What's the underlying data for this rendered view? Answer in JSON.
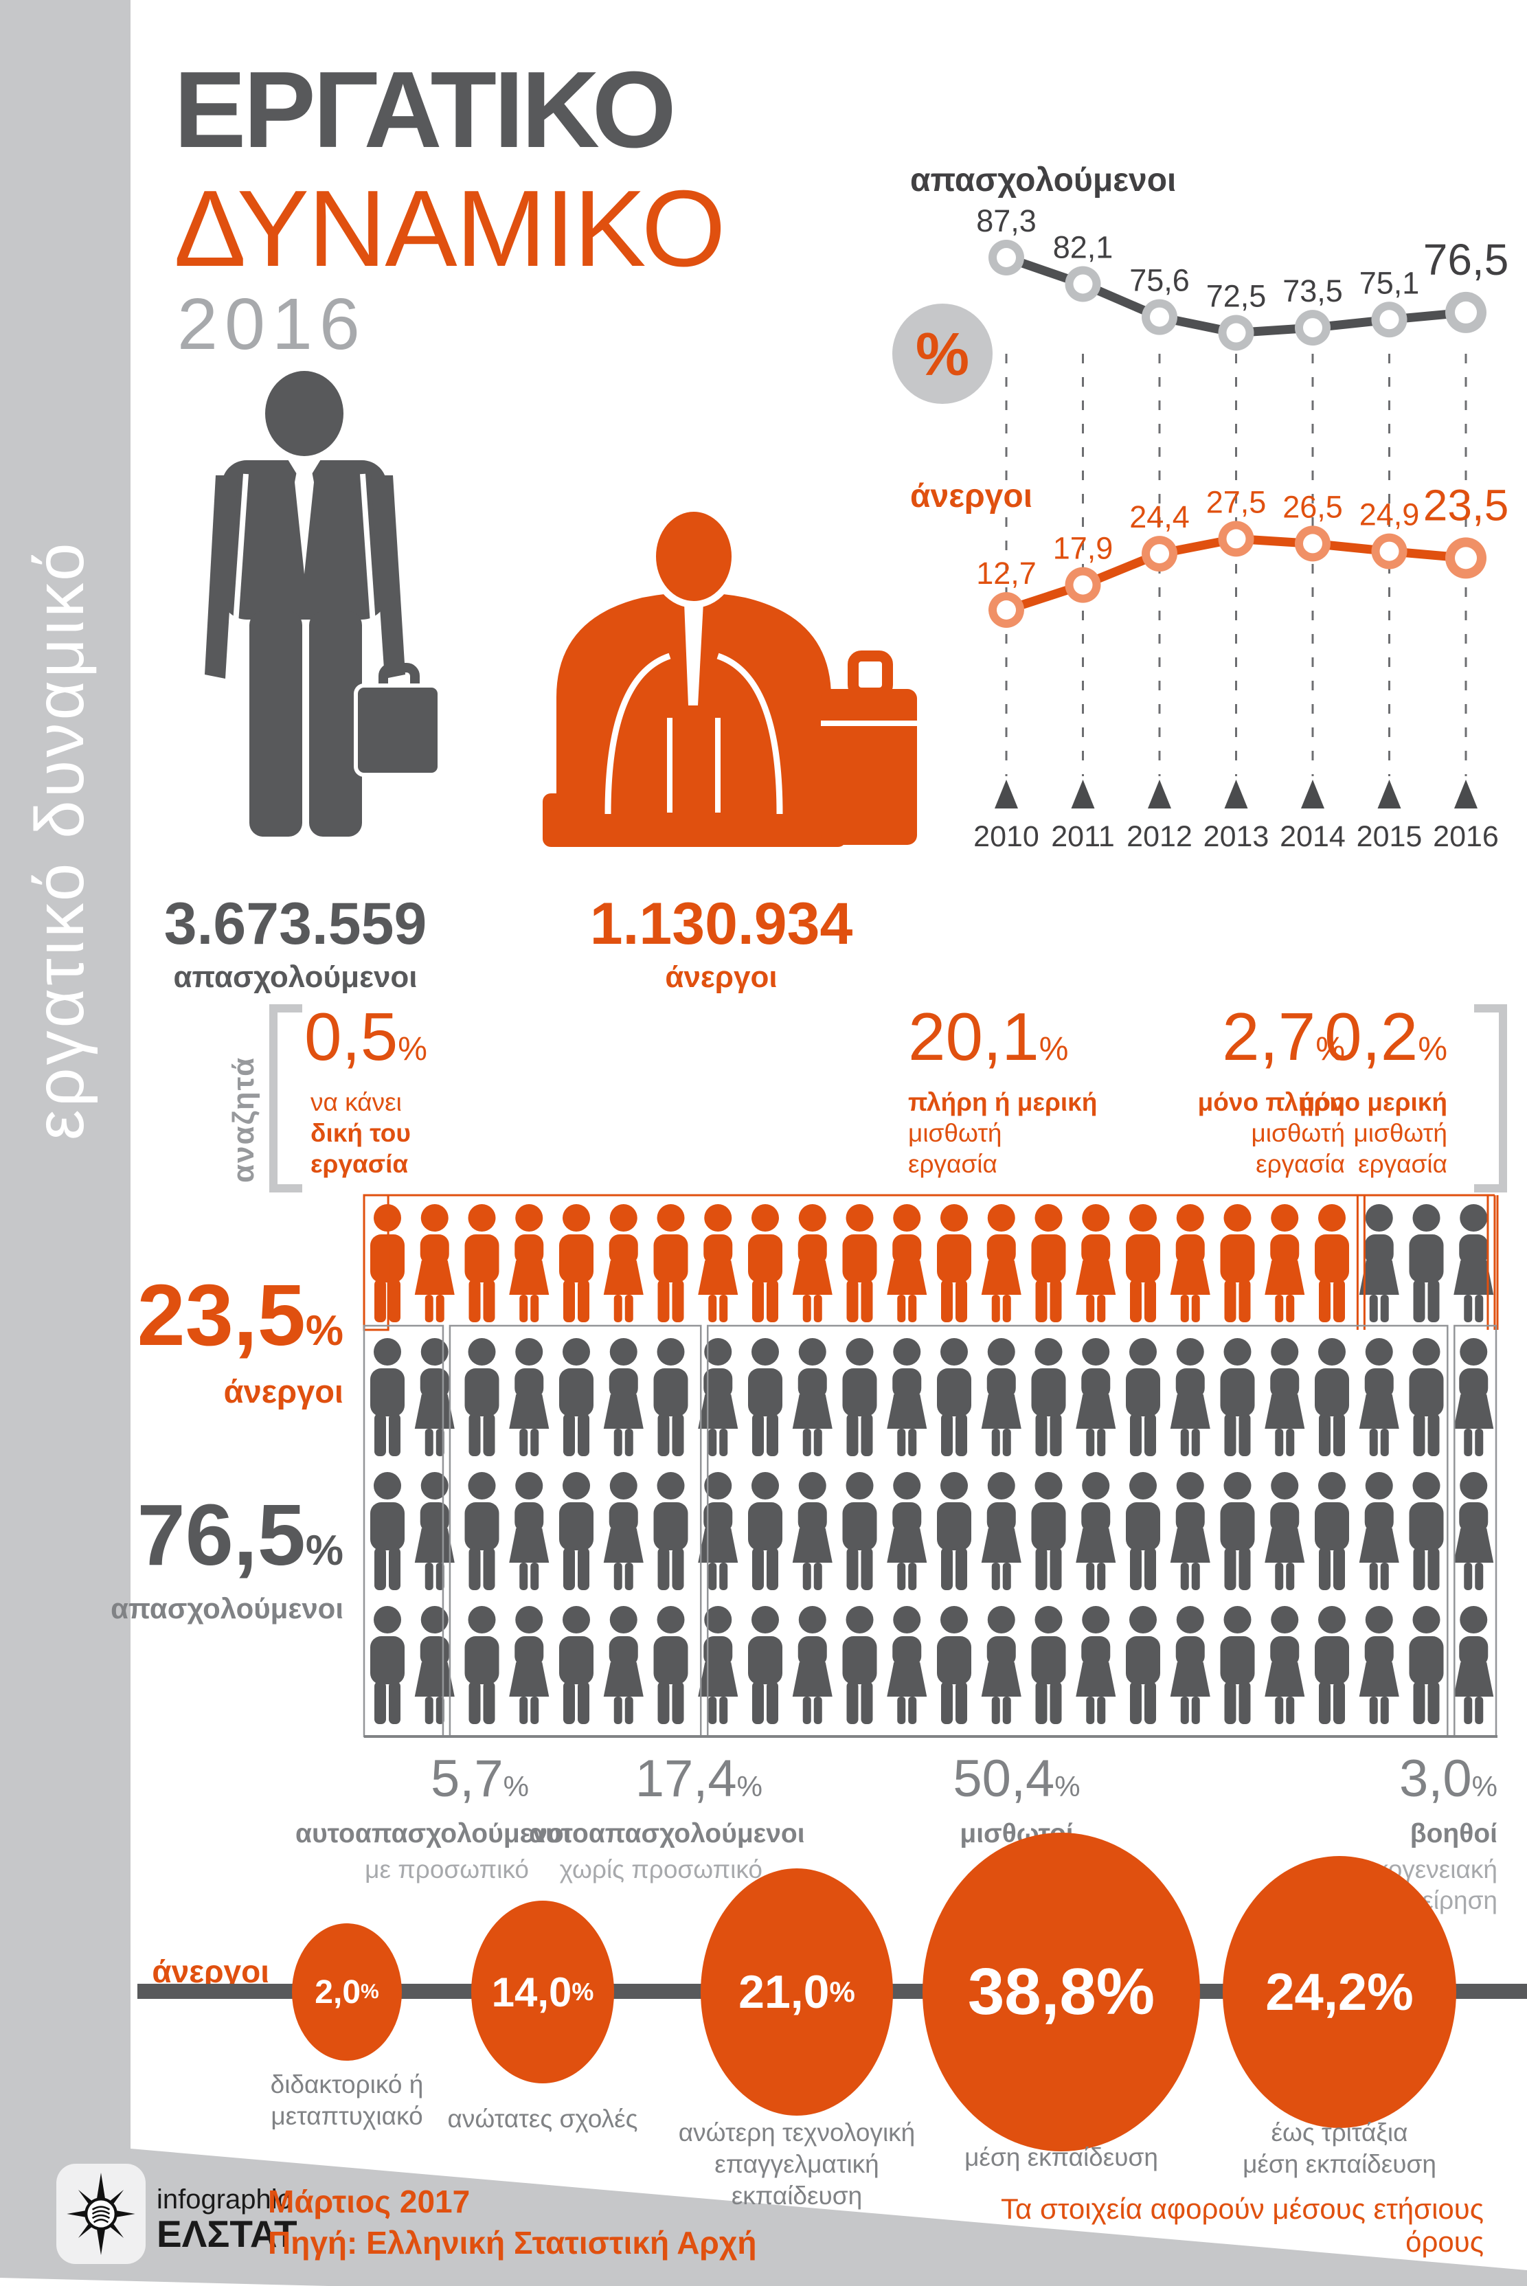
{
  "page": {
    "sidebar_text": "εργατικό δυναμικό",
    "title_line1": "ΕΡΓΑΤΙΚΟ",
    "title_line2": "ΔΥΝΑΜΙΚΟ",
    "title_year": "2016"
  },
  "chart_data": {
    "type": "line",
    "x": [
      "2010",
      "2011",
      "2012",
      "2013",
      "2014",
      "2015",
      "2016"
    ],
    "unit_badge": "%",
    "grid": "dashed-vertical-per-year",
    "legend_position": "left-of-lines",
    "series": [
      {
        "name": "απασχολούμενοι",
        "values": [
          87.3,
          82.1,
          75.6,
          72.5,
          73.5,
          75.1,
          76.5
        ],
        "labels": [
          "87,3",
          "82,1",
          "75,6",
          "72,5",
          "73,5",
          "75,1",
          "76,5"
        ],
        "color": "#4f5052",
        "marker_rim": "#bdbfc1",
        "label_color": "#414042"
      },
      {
        "name": "άνεργοι",
        "values": [
          12.7,
          17.9,
          24.4,
          27.5,
          26.5,
          24.9,
          23.5
        ],
        "labels": [
          "12,7",
          "17,9",
          "24,4",
          "27,5",
          "26,5",
          "24,9",
          "23,5"
        ],
        "color": "#e0500f",
        "marker_rim": "#f09066",
        "label_color": "#e0500f"
      }
    ]
  },
  "totals": {
    "employed_number": "3.673.559",
    "employed_label": "απασχολούμενοι",
    "unemployed_number": "1.130.934",
    "unemployed_label": "άνεργοι"
  },
  "seeking": {
    "side_label": "αναζητά",
    "items": [
      {
        "value": "0,5",
        "unit": "%",
        "line1": "να κάνει",
        "line2": "δική του",
        "line3": "εργασία",
        "percent": 0.5
      },
      {
        "value": "20,1",
        "unit": "%",
        "line1": "πλήρη ή μερική",
        "line2": "μισθωτή",
        "line3": "εργασία",
        "percent": 20.1
      },
      {
        "value": "2,7",
        "unit": "%",
        "line1": "μόνο πλήρη",
        "line2": "μισθωτή",
        "line3": "εργασία",
        "percent": 2.7
      },
      {
        "value": "0,2",
        "unit": "%",
        "line1": "μόνο μερική",
        "line2": "μισθωτή",
        "line3": "εργασία",
        "percent": 0.2
      }
    ]
  },
  "workforce_split": {
    "unemployed": {
      "value": "23,5",
      "unit": "%",
      "label": "άνεργοι",
      "percent": 23.5
    },
    "employed": {
      "value": "76,5",
      "unit": "%",
      "label": "απασχολούμενοι",
      "percent": 76.5
    },
    "crowd": {
      "rows": 4,
      "per_row": 24,
      "orange_count": 21
    }
  },
  "employment_types": [
    {
      "value": "5,7",
      "unit": "%",
      "label_bold": "αυτοαπασχολούμενοι",
      "label_light": "με προσωπικό",
      "percent": 5.7
    },
    {
      "value": "17,4",
      "unit": "%",
      "label_bold": "αυτοαπασχολούμενοι",
      "label_light": "χωρίς προσωπικό",
      "percent": 17.4
    },
    {
      "value": "50,4",
      "unit": "%",
      "label_bold": "μισθωτοί",
      "label_light": "",
      "percent": 50.4
    },
    {
      "value": "3,0",
      "unit": "%",
      "label_bold": "βοηθοί",
      "label_light": "στην οικογενειακή επιχείρηση",
      "percent": 3.0
    }
  ],
  "education": {
    "side_label": "άνεργοι",
    "circles": [
      {
        "value": "2,0",
        "unit": "%",
        "lines": [
          "διδακτορικό ή",
          "μεταπτυχιακό"
        ],
        "percent": 2.0
      },
      {
        "value": "14,0",
        "unit": "%",
        "lines": [
          "ανώτατες σχολές"
        ],
        "percent": 14.0
      },
      {
        "value": "21,0",
        "unit": "%",
        "lines": [
          "ανώτερη τεχνολογική",
          "επαγγελματική",
          "εκπαίδευση"
        ],
        "percent": 21.0
      },
      {
        "value": "38,8",
        "unit": "%",
        "lines": [
          "μέση εκπαίδευση"
        ],
        "percent": 38.8
      },
      {
        "value": "24,2",
        "unit": "%",
        "lines": [
          "έως τριτάξια",
          "μέση εκπαίδευση"
        ],
        "percent": 24.2
      }
    ]
  },
  "footer": {
    "logo_line1": "infographic",
    "logo_line2": "ΕΛΣΤΑΤ",
    "date": "Μάρτιος 2017",
    "source": "Πηγή:  Ελληνική Στατιστική Αρχή",
    "note": "Τα στοιχεία αφορούν μέσους ετήσιους όρους"
  },
  "colors": {
    "orange": "#e0500f",
    "orange_light": "#f09066",
    "dark": "#58595b",
    "darker": "#414042",
    "gray_bg": "#c6c7c9",
    "gray_marker": "#bdbfc1",
    "gray_mid": "#808285",
    "gray_soft": "#a7a9ac"
  }
}
